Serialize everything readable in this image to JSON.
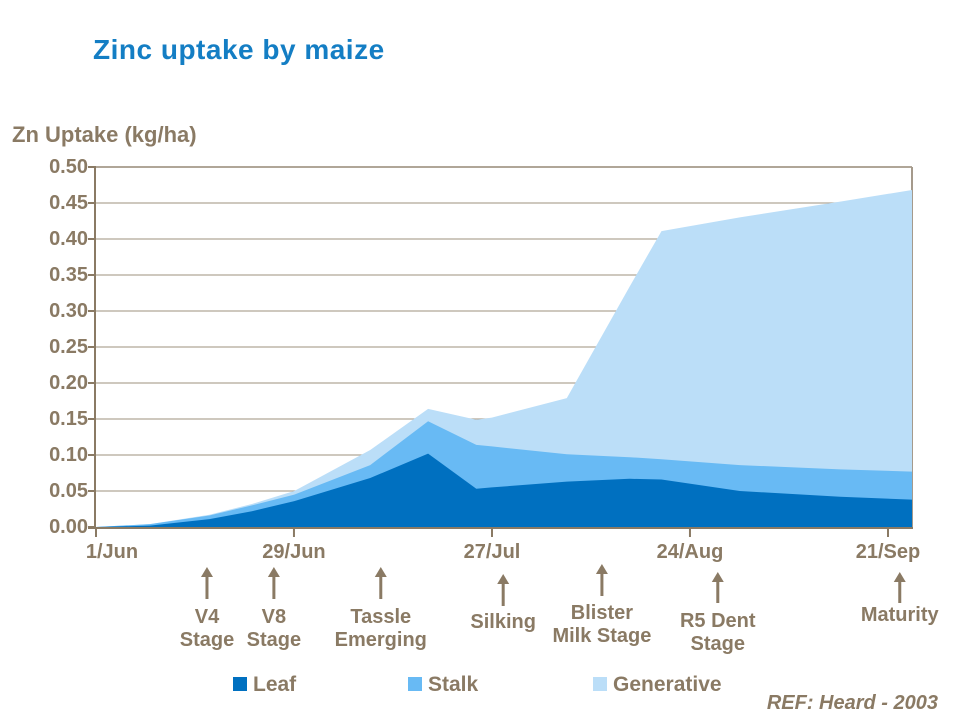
{
  "title": "Zinc uptake by maize",
  "y_axis": {
    "label": "Zn Uptake (kg/ha)",
    "min": 0.0,
    "max": 0.5,
    "step": 0.05
  },
  "x_axis": {
    "ticks": [
      "1/Jun",
      "29/Jun",
      "27/Jul",
      "24/Aug",
      "21/Sep"
    ]
  },
  "legend": [
    {
      "name": "Leaf"
    },
    {
      "name": "Stalk"
    },
    {
      "name": "Generative"
    }
  ],
  "reference": "REF: Heard - 2003",
  "colors": {
    "title": "#147EC4",
    "text_brown": "#8A7A64",
    "grid": "#B0A698",
    "frame": "#A59A8C",
    "leaf": "#0070C0",
    "stalk": "#68BAF4",
    "generative": "#BBDEF8"
  },
  "chart_data": {
    "type": "area",
    "stacked": true,
    "title": "Zinc uptake by maize",
    "ylabel": "Zn Uptake (kg/ha)",
    "ylim": [
      0.0,
      0.5
    ],
    "ytick_step": 0.05,
    "grid": "horizontal",
    "legend_position": "bottom",
    "x_tick_labels": [
      "1/Jun",
      "29/Jun",
      "27/Jul",
      "24/Aug",
      "21/Sep"
    ],
    "x_tick_t": [
      0.0,
      0.2426,
      0.4853,
      0.7279,
      0.9706
    ],
    "series_order": [
      "leaf",
      "stalk",
      "generative"
    ],
    "points": [
      {
        "t": 0.0,
        "leaf": 0.0,
        "stalk": 0.0,
        "generative": 0.0
      },
      {
        "t": 0.066,
        "leaf": 0.002,
        "stalk": 0.002,
        "generative": 0.0
      },
      {
        "t": 0.139,
        "leaf": 0.011,
        "stalk": 0.005,
        "generative": 0.001
      },
      {
        "t": 0.191,
        "leaf": 0.022,
        "stalk": 0.008,
        "generative": 0.002
      },
      {
        "t": 0.243,
        "leaf": 0.036,
        "stalk": 0.009,
        "generative": 0.005
      },
      {
        "t": 0.336,
        "leaf": 0.068,
        "stalk": 0.018,
        "generative": 0.021
      },
      {
        "t": 0.407,
        "leaf": 0.102,
        "stalk": 0.045,
        "generative": 0.017
      },
      {
        "t": 0.466,
        "leaf": 0.053,
        "stalk": 0.061,
        "generative": 0.035
      },
      {
        "t": 0.485,
        "leaf": 0.055,
        "stalk": 0.057,
        "generative": 0.04
      },
      {
        "t": 0.577,
        "leaf": 0.063,
        "stalk": 0.038,
        "generative": 0.078
      },
      {
        "t": 0.654,
        "leaf": 0.067,
        "stalk": 0.03,
        "generative": 0.237
      },
      {
        "t": 0.693,
        "leaf": 0.066,
        "stalk": 0.028,
        "generative": 0.317
      },
      {
        "t": 0.789,
        "leaf": 0.05,
        "stalk": 0.036,
        "generative": 0.344
      },
      {
        "t": 0.912,
        "leaf": 0.042,
        "stalk": 0.038,
        "generative": 0.372
      },
      {
        "t": 1.0,
        "leaf": 0.038,
        "stalk": 0.039,
        "generative": 0.391
      }
    ],
    "stage_annotations": [
      {
        "t": 0.136,
        "lines": [
          "V4",
          "Stage"
        ]
      },
      {
        "t": 0.218,
        "lines": [
          "V8",
          "Stage"
        ]
      },
      {
        "t": 0.349,
        "lines": [
          "Tassle",
          "Emerging"
        ]
      },
      {
        "t": 0.499,
        "lines": [
          "Silking"
        ]
      },
      {
        "t": 0.62,
        "lines": [
          "Blister",
          "Milk Stage"
        ]
      },
      {
        "t": 0.762,
        "lines": [
          "R5 Dent",
          "Stage"
        ]
      },
      {
        "t": 0.985,
        "lines": [
          "Maturity"
        ]
      }
    ]
  }
}
